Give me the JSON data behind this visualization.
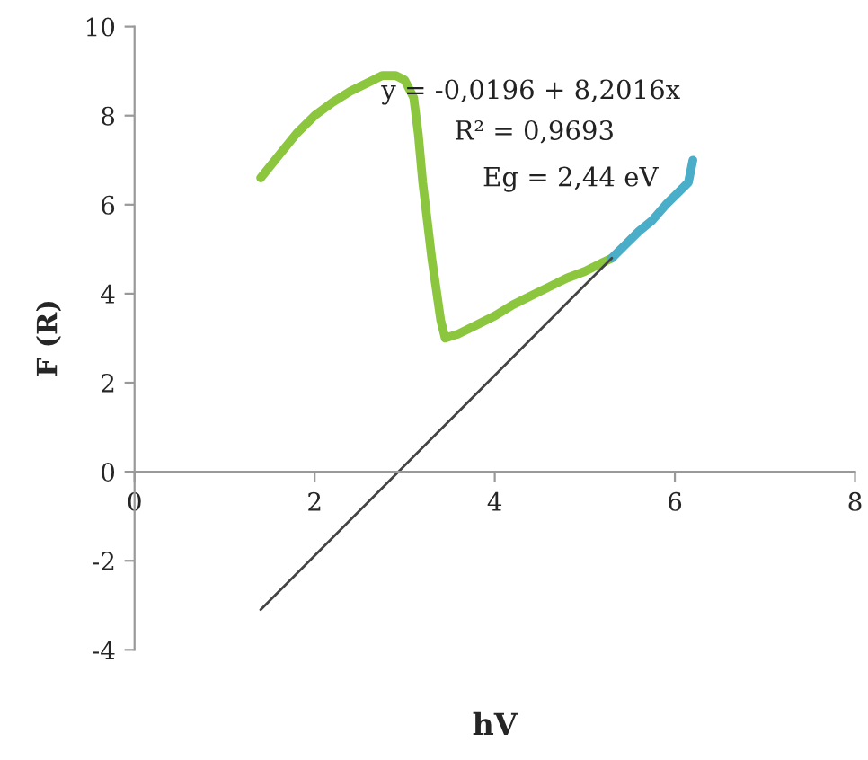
{
  "chart_data": {
    "type": "line",
    "xlabel": "hV",
    "ylabel": "F (R)",
    "xlim": [
      0,
      8
    ],
    "xticks": [
      0,
      2,
      4,
      6,
      8
    ],
    "ylim": [
      -4,
      10
    ],
    "yticks": [
      -4,
      -2,
      0,
      2,
      4,
      6,
      8,
      10
    ],
    "grid": false,
    "legend": false,
    "marker": "none",
    "line_style": "solid",
    "series": [
      {
        "color": "#8cc63e",
        "x": [
          1.4,
          1.6,
          1.8,
          2.0,
          2.2,
          2.4,
          2.6,
          2.75,
          2.9,
          3.0,
          3.1,
          3.15,
          3.2,
          3.3,
          3.4,
          3.45,
          3.6,
          3.8,
          4.0,
          4.2,
          4.4,
          4.6,
          4.8,
          5.0,
          5.2,
          5.3
        ],
        "values": [
          6.6,
          7.1,
          7.6,
          8.0,
          8.3,
          8.55,
          8.75,
          8.9,
          8.9,
          8.8,
          8.4,
          7.6,
          6.5,
          4.8,
          3.4,
          3.0,
          3.1,
          3.3,
          3.5,
          3.75,
          3.95,
          4.15,
          4.35,
          4.5,
          4.7,
          4.8
        ]
      },
      {
        "color": "#4aaec8",
        "x": [
          5.3,
          5.45,
          5.6,
          5.75,
          5.9,
          6.05,
          6.15,
          6.2
        ],
        "values": [
          4.8,
          5.1,
          5.4,
          5.65,
          6.0,
          6.3,
          6.5,
          7.0
        ]
      },
      {
        "color": "#444444",
        "x": [
          1.4,
          5.3
        ],
        "values": [
          -3.1,
          4.8
        ]
      }
    ],
    "annotations": [
      "y = -0,0196 + 8,2016x",
      "R² = 0,9693",
      "Eg = 2,44 eV"
    ]
  }
}
